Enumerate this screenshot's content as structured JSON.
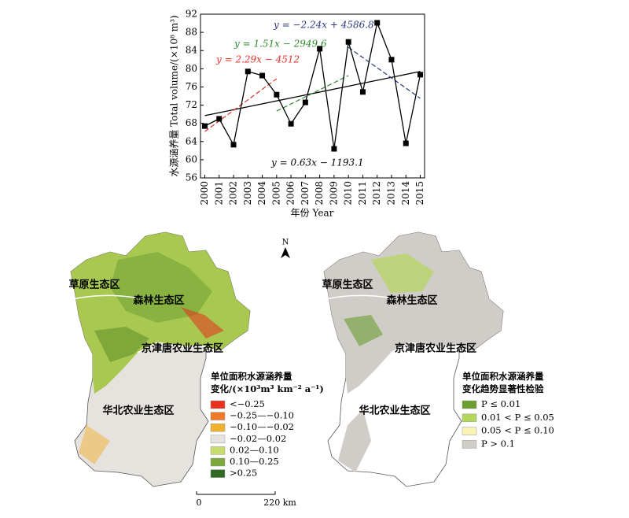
{
  "chart_data": {
    "type": "line",
    "y_label": "水源涵养量 Total volume/(×10⁸ m³)",
    "x_label": "年份 Year",
    "x": [
      2000,
      2001,
      2002,
      2003,
      2004,
      2005,
      2006,
      2007,
      2008,
      2009,
      2010,
      2011,
      2012,
      2013,
      2014,
      2015
    ],
    "values": [
      67.4,
      69.0,
      63.3,
      79.4,
      78.5,
      74.3,
      67.9,
      72.6,
      84.4,
      62.4,
      85.9,
      74.9,
      90.1,
      82.0,
      63.6,
      78.7
    ],
    "color": "#000000",
    "xlim": [
      1999.7,
      2015.3
    ],
    "xticks": [
      2000,
      2001,
      2002,
      2003,
      2004,
      2005,
      2006,
      2007,
      2008,
      2009,
      2010,
      2011,
      2012,
      2013,
      2014,
      2015
    ],
    "ylim": [
      56,
      92
    ],
    "yticks": [
      56,
      60,
      64,
      68,
      72,
      76,
      80,
      84,
      88,
      92
    ],
    "trends": [
      {
        "label": "y = 0.63x − 1193.1",
        "color": "#000000",
        "x": [
          2000,
          2015
        ],
        "values": [
          69.7,
          79.4
        ]
      },
      {
        "label": "y = 2.29x − 4512",
        "color": "#e0302a",
        "x": [
          2000,
          2005
        ],
        "values": [
          66.2,
          77.8
        ]
      },
      {
        "label": "y = 1.51x − 2949.6",
        "color": "#2e8a2e",
        "x": [
          2005,
          2010
        ],
        "values": [
          70.7,
          78.5
        ]
      },
      {
        "label": "y = −2.24x + 4586.8",
        "color": "#2a3a7a",
        "x": [
          2010,
          2015
        ],
        "values": [
          84.7,
          73.5
        ]
      }
    ]
  },
  "maps": {
    "north": "N",
    "scale": [
      "0",
      "220 km"
    ],
    "left": {
      "regions": [
        "草原生态区",
        "森林生态区",
        "京津唐农业生态区",
        "华北农业生态区"
      ],
      "legend_title": [
        "单位面积水源涵养量",
        "变化/(×10³m³ km⁻² a⁻¹)"
      ],
      "legend": [
        {
          "label": "<−0.25",
          "color": "#e8321e"
        },
        {
          "label": "−0.25—−0.10",
          "color": "#f07a2a"
        },
        {
          "label": "−0.10—−0.02",
          "color": "#f0b030"
        },
        {
          "label": "−0.02—0.02",
          "color": "#e6e3df"
        },
        {
          "label": "0.02—0.10",
          "color": "#c8dc70"
        },
        {
          "label": "0.10—0.25",
          "color": "#7aa83a"
        },
        {
          "label": ">0.25",
          "color": "#2e6a24"
        }
      ]
    },
    "right": {
      "regions": [
        "草原生态区",
        "森林生态区",
        "京津唐农业生态区",
        "华北农业生态区"
      ],
      "legend_title": [
        "单位面积水源涵养量",
        "变化趋势显著性检验"
      ],
      "legend": [
        {
          "label": "P ≤ 0.01",
          "color": "#6a9e2e"
        },
        {
          "label": "0.01 < P ≤ 0.05",
          "color": "#b4d65a"
        },
        {
          "label": "0.05 < P ≤ 0.10",
          "color": "#f8f4b8"
        },
        {
          "label": "P > 0.1",
          "color": "#d0ccc8"
        }
      ]
    }
  }
}
